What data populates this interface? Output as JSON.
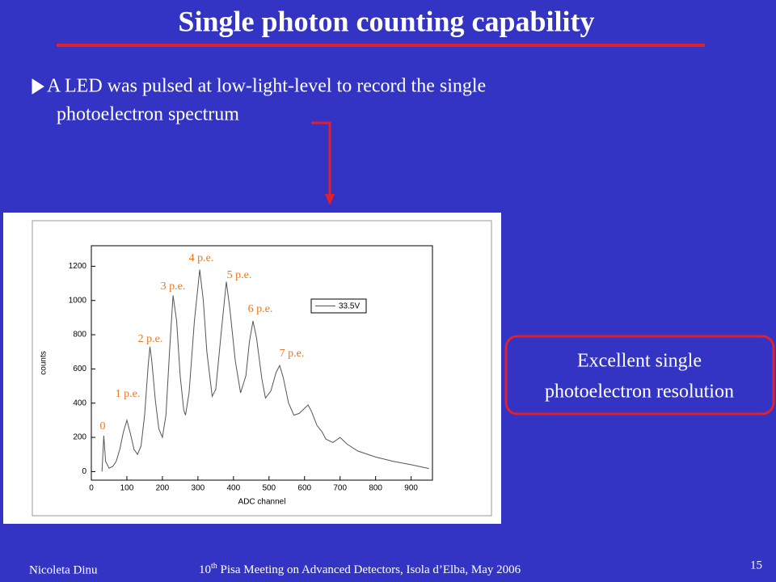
{
  "slide": {
    "title": "Single photon counting capability",
    "bullet_lines": [
      "A LED was pulsed at low-light-level to record the single",
      "photoelectron spectrum"
    ],
    "callout_lines": [
      "Excellent single",
      "photoelectron resolution"
    ],
    "footer": {
      "author": "Nicoleta Dinu",
      "event_number": "10",
      "event_suffix": "th",
      "event_rest": " Pisa Meeting on Advanced Detectors, Isola d’Elba, May 2006",
      "page": "15"
    }
  },
  "chart_data": {
    "type": "line",
    "x_label": "ADC channel",
    "y_label": "counts",
    "x": [
      30,
      35,
      40,
      50,
      60,
      70,
      80,
      90,
      100,
      110,
      120,
      130,
      140,
      150,
      160,
      165,
      170,
      180,
      190,
      200,
      210,
      220,
      230,
      240,
      250,
      260,
      265,
      275,
      290,
      305,
      315,
      325,
      340,
      350,
      365,
      380,
      390,
      405,
      420,
      435,
      445,
      455,
      465,
      480,
      490,
      505,
      520,
      530,
      540,
      555,
      570,
      585,
      600,
      610,
      620,
      635,
      650,
      660,
      680,
      700,
      720,
      750,
      800,
      850,
      900,
      950
    ],
    "series": [
      {
        "name": "33.5V",
        "color": "#555555",
        "values": [
          0,
          210,
          60,
          20,
          30,
          60,
          130,
          230,
          300,
          220,
          130,
          100,
          150,
          330,
          620,
          730,
          650,
          420,
          250,
          200,
          330,
          700,
          1030,
          880,
          560,
          360,
          330,
          460,
          880,
          1180,
          1000,
          700,
          440,
          480,
          800,
          1110,
          950,
          650,
          460,
          560,
          760,
          880,
          780,
          540,
          430,
          470,
          580,
          620,
          550,
          400,
          330,
          340,
          370,
          390,
          350,
          270,
          230,
          190,
          170,
          200,
          160,
          120,
          85,
          60,
          40,
          18
        ]
      }
    ],
    "annotations": [
      "0",
      "1 p.e.",
      "2 p.e.",
      "3 p.e.",
      "4 p.e.",
      "5 p.e.",
      "6 p.e.",
      "7 p.e."
    ],
    "annotation_color": "#e87722",
    "xlim": [
      0,
      960
    ],
    "xticks": [
      0,
      100,
      200,
      300,
      400,
      500,
      600,
      700,
      800,
      900
    ],
    "ylim": [
      -50,
      1320
    ],
    "yticks": [
      0,
      200,
      400,
      600,
      800,
      1000,
      1200
    ]
  }
}
